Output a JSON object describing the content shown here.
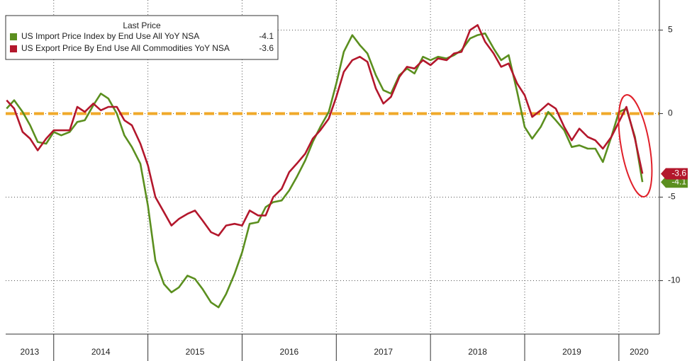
{
  "chart_data": {
    "type": "line",
    "legend_title": "Last Price",
    "x": [
      2013.5,
      2013.58,
      2013.67,
      2013.75,
      2013.83,
      2013.92,
      2014.0,
      2014.08,
      2014.17,
      2014.25,
      2014.33,
      2014.42,
      2014.5,
      2014.58,
      2014.67,
      2014.75,
      2014.83,
      2014.92,
      2015.0,
      2015.08,
      2015.17,
      2015.25,
      2015.33,
      2015.42,
      2015.5,
      2015.58,
      2015.67,
      2015.75,
      2015.83,
      2015.92,
      2016.0,
      2016.08,
      2016.17,
      2016.25,
      2016.33,
      2016.42,
      2016.5,
      2016.58,
      2016.67,
      2016.75,
      2016.83,
      2016.92,
      2017.0,
      2017.08,
      2017.17,
      2017.25,
      2017.33,
      2017.42,
      2017.5,
      2017.58,
      2017.67,
      2017.75,
      2017.83,
      2017.92,
      2018.0,
      2018.08,
      2018.17,
      2018.25,
      2018.33,
      2018.42,
      2018.5,
      2018.58,
      2018.67,
      2018.75,
      2018.83,
      2018.92,
      2019.0,
      2019.08,
      2019.17,
      2019.25,
      2019.33,
      2019.42,
      2019.5,
      2019.58,
      2019.67,
      2019.75,
      2019.83,
      2019.92,
      2020.0,
      2020.08,
      2020.17,
      2020.25
    ],
    "series": [
      {
        "name": "US Import Price Index by End Use All YoY NSA",
        "color": "#5b8f1f",
        "values": [
          0.3,
          0.8,
          0.1,
          -0.7,
          -1.7,
          -1.8,
          -1.1,
          -1.3,
          -1.1,
          -0.5,
          -0.4,
          0.5,
          1.2,
          0.9,
          0,
          -1.3,
          -2.0,
          -3.0,
          -5.5,
          -8.8,
          -10.2,
          -10.7,
          -10.4,
          -9.7,
          -9.9,
          -10.5,
          -11.3,
          -11.6,
          -10.8,
          -9.6,
          -8.3,
          -6.6,
          -6.5,
          -5.6,
          -5.3,
          -5.2,
          -4.6,
          -3.8,
          -2.8,
          -1.7,
          -0.8,
          0.1,
          1.8,
          3.7,
          4.7,
          4.1,
          3.6,
          2.3,
          1.4,
          1.2,
          2.3,
          2.7,
          2.4,
          3.4,
          3.2,
          3.4,
          3.3,
          3.5,
          3.8,
          4.5,
          4.7,
          4.8,
          3.9,
          3.2,
          3.5,
          1.3,
          -0.8,
          -1.5,
          -0.8,
          0.1,
          -0.4,
          -1.0,
          -2.0,
          -1.9,
          -2.1,
          -2.1,
          -2.9,
          -1.4,
          0.1,
          0.3,
          -1.4,
          -4.1
        ]
      },
      {
        "name": "US Export Price By End Use All Commodities YoY NSA",
        "color": "#b3172c",
        "values": [
          0.8,
          0.3,
          -1.1,
          -1.5,
          -2.2,
          -1.5,
          -1.0,
          -1.0,
          -1.0,
          0.4,
          0.1,
          0.6,
          0.2,
          0.4,
          0.4,
          -0.4,
          -0.7,
          -1.8,
          -3.1,
          -5.0,
          -5.9,
          -6.7,
          -6.3,
          -6.0,
          -5.8,
          -6.4,
          -7.1,
          -7.3,
          -6.7,
          -6.6,
          -6.7,
          -5.8,
          -6.1,
          -6.1,
          -5.0,
          -4.5,
          -3.5,
          -3.0,
          -2.4,
          -1.5,
          -1.0,
          -0.3,
          1.0,
          2.5,
          3.2,
          3.4,
          3.1,
          1.5,
          0.6,
          1.0,
          2.2,
          2.8,
          2.7,
          3.2,
          2.9,
          3.3,
          3.2,
          3.6,
          3.7,
          5.0,
          5.3,
          4.3,
          3.6,
          2.8,
          3.0,
          1.8,
          1.1,
          -0.2,
          0.2,
          0.6,
          0.3,
          -0.8,
          -1.6,
          -0.9,
          -1.4,
          -1.6,
          -2.1,
          -1.4,
          -0.5,
          0.4,
          -1.5,
          -3.6
        ]
      }
    ],
    "xlim": [
      2013.49,
      2020.43
    ],
    "xticks": [
      2014,
      2015,
      2016,
      2017,
      2018,
      2019,
      2020
    ],
    "year_labels": [
      "2013",
      "2014",
      "2015",
      "2016",
      "2017",
      "2018",
      "2019",
      "2020"
    ],
    "ylim": [
      -13.2,
      6.8
    ],
    "yticks": [
      -10,
      -5,
      0,
      5
    ],
    "reference_line": 0,
    "reference_color": "#f0a92a",
    "grid": true
  }
}
